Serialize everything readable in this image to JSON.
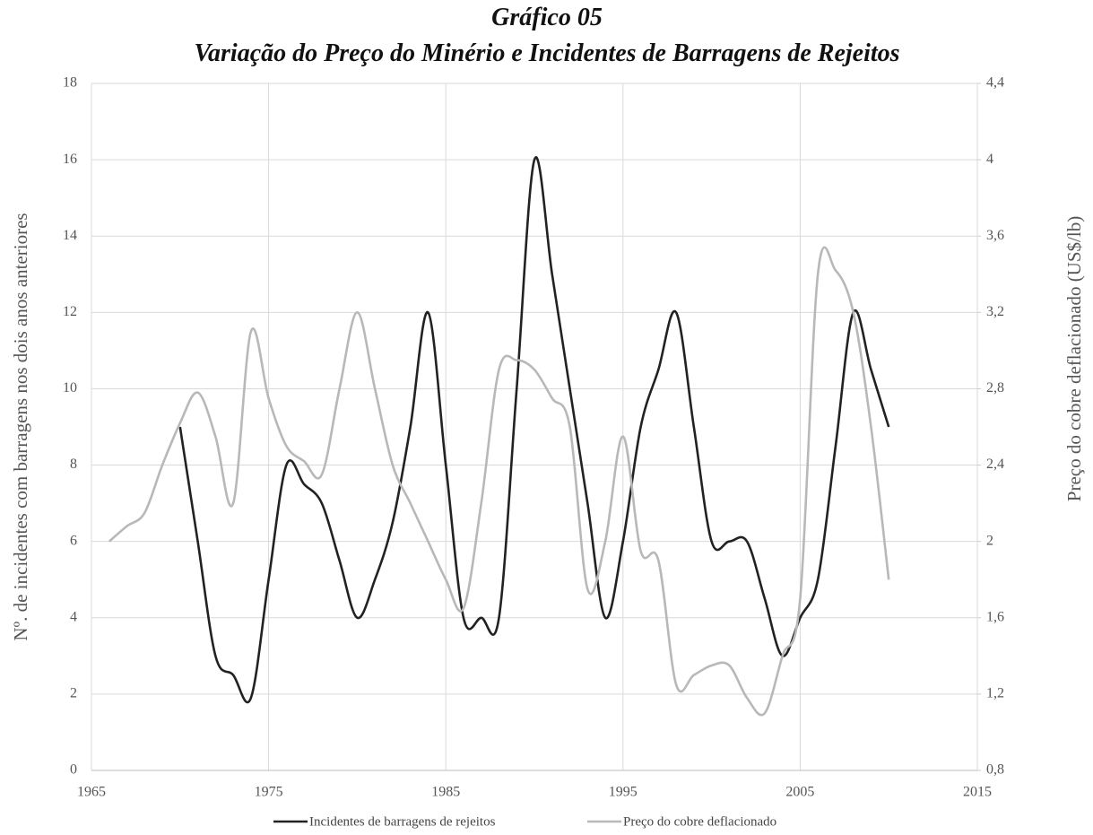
{
  "chart_data": {
    "type": "line",
    "title": "Gráfico 05",
    "subtitle": "Variação do Preço do Minério e Incidentes de Barragens de Rejeitos",
    "y_label": "Nº. de incidentes com barragens nos dois anos anteriores",
    "y2_label": "Preço do cobre deflacionado (US$/lb)",
    "xlim": [
      1965,
      2015
    ],
    "xticks": [
      1965,
      1975,
      1985,
      1995,
      2005,
      2015
    ],
    "ylim": [
      0,
      18
    ],
    "yticks": [
      0,
      2,
      4,
      6,
      8,
      10,
      12,
      14,
      16,
      18
    ],
    "y2lim": [
      0.8,
      4.4
    ],
    "y2ticks": [
      {
        "value": 0.8,
        "label": "0,8"
      },
      {
        "value": 1.2,
        "label": "1,2"
      },
      {
        "value": 1.6,
        "label": "1,6"
      },
      2,
      {
        "value": 2.4,
        "label": "2,4"
      },
      {
        "value": 2.8,
        "label": "2,8"
      },
      {
        "value": 3.2,
        "label": "3,2"
      },
      {
        "value": 3.6,
        "label": "3,6"
      },
      4,
      {
        "value": 4.4,
        "label": "4,4"
      }
    ],
    "grid": true,
    "legend": "bottom",
    "series": [
      {
        "name": "Incidentes de barragens de rejeitos",
        "color": "#222222",
        "axis": "y",
        "x": [
          1970,
          1971,
          1972,
          1973,
          1974,
          1975,
          1976,
          1977,
          1978,
          1979,
          1980,
          1981,
          1982,
          1983,
          1984,
          1985,
          1986,
          1987,
          1988,
          1989,
          1990,
          1991,
          1992,
          1993,
          1994,
          1995,
          1996,
          1997,
          1998,
          1999,
          2000,
          2001,
          2002,
          2003,
          2004,
          2005,
          2006,
          2007,
          2008,
          2009,
          2010
        ],
        "values": [
          9,
          6,
          3,
          2.5,
          1.9,
          5,
          8,
          7.5,
          7,
          5.5,
          4,
          5,
          6.5,
          9,
          12,
          8,
          4,
          4,
          4,
          10,
          16,
          13,
          10,
          7,
          4,
          6,
          9,
          10.5,
          12,
          9,
          6,
          6,
          6,
          4.5,
          3,
          4,
          5,
          8.5,
          12,
          10.5,
          9
        ]
      },
      {
        "name": "Preço do cobre deflacionado",
        "color": "#b8b8b8",
        "axis": "y2",
        "x": [
          1966,
          1967,
          1968,
          1969,
          1970,
          1971,
          1972,
          1973,
          1974,
          1975,
          1976,
          1977,
          1978,
          1979,
          1980,
          1981,
          1982,
          1983,
          1984,
          1985,
          1986,
          1987,
          1988,
          1989,
          1990,
          1991,
          1992,
          1993,
          1994,
          1995,
          1996,
          1997,
          1998,
          1999,
          2000,
          2001,
          2002,
          2003,
          2004,
          2005,
          2006,
          2007,
          2008,
          2009,
          2010
        ],
        "values": [
          2.0,
          2.08,
          2.15,
          2.4,
          2.62,
          2.78,
          2.55,
          2.2,
          3.1,
          2.75,
          2.5,
          2.42,
          2.35,
          2.8,
          3.2,
          2.8,
          2.4,
          2.2,
          2.0,
          1.8,
          1.65,
          2.2,
          2.9,
          2.95,
          2.9,
          2.75,
          2.6,
          1.75,
          2.0,
          2.55,
          1.95,
          1.9,
          1.25,
          1.3,
          1.35,
          1.35,
          1.18,
          1.1,
          1.4,
          1.7,
          3.4,
          3.42,
          3.2,
          2.6,
          1.8
        ]
      }
    ]
  }
}
